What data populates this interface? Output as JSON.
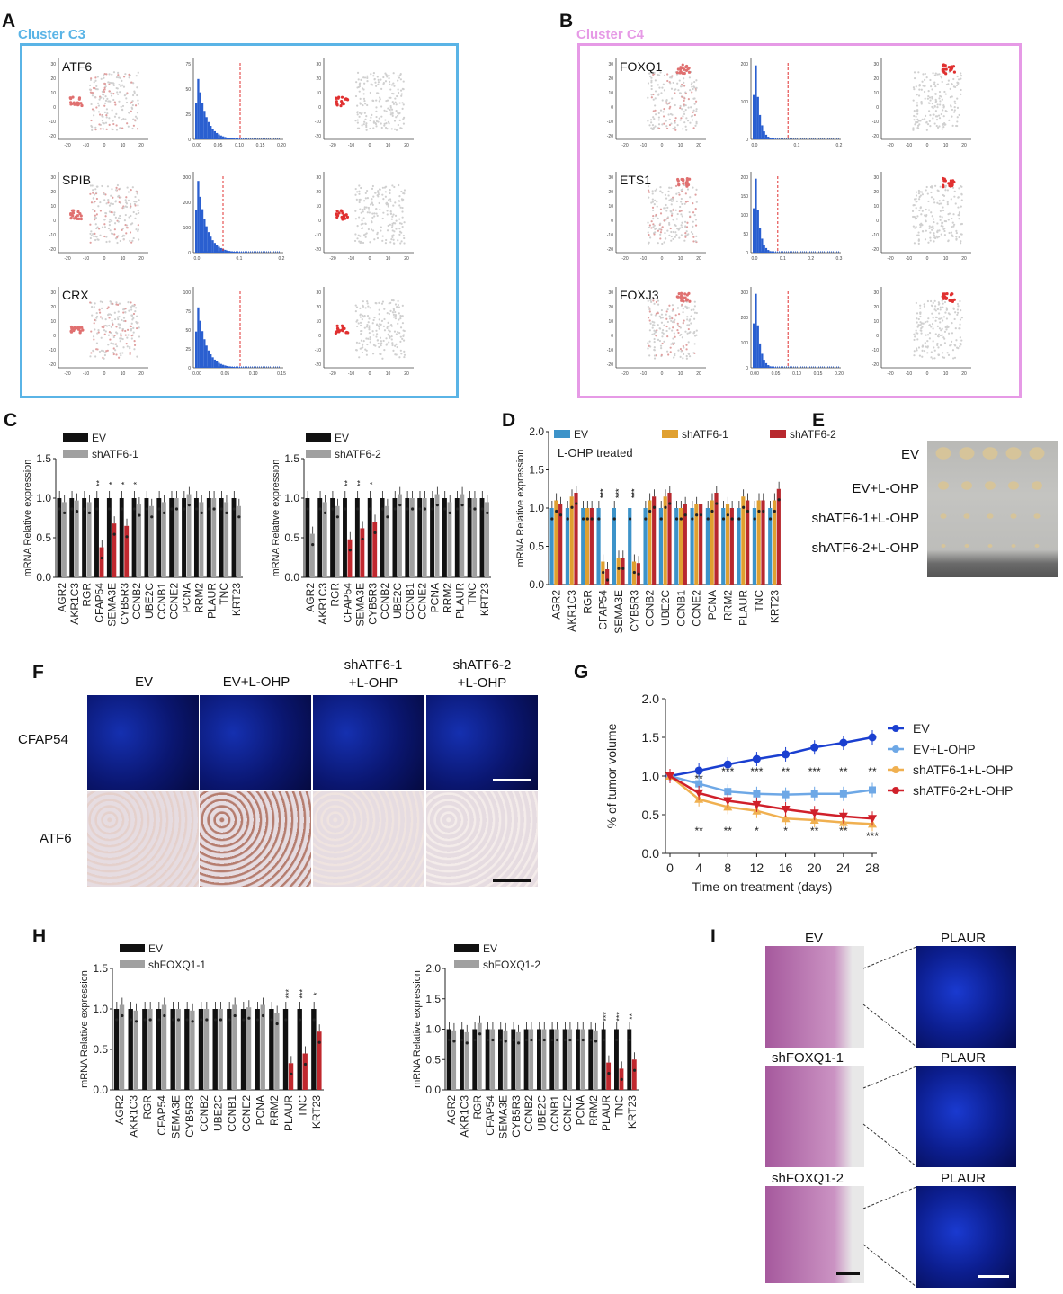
{
  "panels": {
    "A": {
      "letter": "A",
      "title": "Cluster C3",
      "color": "#5ab4e6",
      "genes": [
        "ATF6",
        "SPIB",
        "CRX"
      ],
      "hist_xticks": [
        [
          "0.00",
          "0.05",
          "0.10",
          "0.15",
          "0.20"
        ],
        [
          "0.0",
          "0.1",
          "0.2"
        ],
        [
          "0.00",
          "0.05",
          "0.10",
          "0.15"
        ]
      ],
      "hist_yticks": [
        [
          "75",
          "50",
          "25",
          "0"
        ],
        [
          "300",
          "200",
          "100",
          "0"
        ],
        [
          "100",
          "75",
          "50",
          "25",
          "0"
        ]
      ]
    },
    "B": {
      "letter": "B",
      "title": "Cluster C4",
      "color": "#e69ae6",
      "genes": [
        "FOXQ1",
        "ETS1",
        "FOXJ3"
      ],
      "hist_xticks": [
        [
          "0.0",
          "0.1",
          "0.2"
        ],
        [
          "0.0",
          "0.1",
          "0.2",
          "0.3"
        ],
        [
          "0.00",
          "0.05",
          "0.10",
          "0.15",
          "0.20"
        ]
      ],
      "hist_yticks": [
        [
          "200",
          "100",
          "0"
        ],
        [
          "200",
          "150",
          "100",
          "50",
          "0"
        ],
        [
          "300",
          "200",
          "100",
          "0"
        ]
      ]
    },
    "tsne": {
      "xticks": [
        "-20",
        "-10",
        "0",
        "10",
        "20"
      ],
      "yticks": [
        "30",
        "20",
        "10",
        "0",
        "-10",
        "-20"
      ]
    },
    "C": {
      "letter": "C",
      "ylabel": "mRNA Relative expression",
      "yticks": [
        "0.0",
        "0.5",
        "1.0",
        "1.5"
      ],
      "legend": [
        {
          "label": "EV",
          "color": "#111111"
        },
        {
          "label": "shATF6-1",
          "color": "#a0a0a0"
        }
      ],
      "legend2": [
        {
          "label": "EV",
          "color": "#111111"
        },
        {
          "label": "shATF6-2",
          "color": "#a0a0a0"
        }
      ],
      "genes": [
        "AGR2",
        "AKR1C3",
        "RGR",
        "CFAP54",
        "SEMA3E",
        "CYB5R3",
        "CCNB2",
        "UBE2C",
        "CCNB1",
        "CCNE2",
        "PCNA",
        "RRM2",
        "PLAUR",
        "TNC",
        "KRT23"
      ],
      "sig1": [
        "**",
        "*",
        "*",
        "*"
      ],
      "sig2": [
        "**",
        "**",
        "*"
      ]
    },
    "D": {
      "letter": "D",
      "ylabel": "mRNA Relative expression",
      "yticks": [
        "0.0",
        "0.5",
        "1.0",
        "1.5",
        "2.0"
      ],
      "subtitle": "L-OHP treated",
      "legend": [
        {
          "label": "EV",
          "color": "#3d93c9"
        },
        {
          "label": "shATF6-1",
          "color": "#e0a030"
        },
        {
          "label": "shATF6-2",
          "color": "#b8282e"
        }
      ],
      "genes": [
        "AGR2",
        "AKR1C3",
        "RGR",
        "CFAP54",
        "SEMA3E",
        "CYB5R3",
        "CCNB2",
        "UBE2C",
        "CCNB1",
        "CCNE2",
        "PCNA",
        "RRM2",
        "PLAUR",
        "TNC",
        "KRT23"
      ],
      "sig": [
        "***",
        "***",
        "***",
        "***",
        "***",
        "***"
      ]
    },
    "E": {
      "letter": "E",
      "rows": [
        "EV",
        "EV+L-OHP",
        "shATF6-1+L-OHP",
        "shATF6-2+L-OHP"
      ]
    },
    "F": {
      "letter": "F",
      "cols": [
        "EV",
        "EV+L-OHP",
        "shATF6-1\n+L-OHP",
        "shATF6-2\n+L-OHP"
      ],
      "col1": "shATF6-1",
      "col1b": "+L-OHP",
      "col2": "shATF6-2",
      "col2b": "+L-OHP",
      "rows": [
        "CFAP54",
        "ATF6"
      ]
    },
    "G": {
      "letter": "G",
      "ylabel": "% of  tumor volume",
      "xlabel": "Time on treatment (days)",
      "xticks": [
        "0",
        "4",
        "8",
        "12",
        "16",
        "20",
        "24",
        "28"
      ],
      "yticks": [
        "0.0",
        "0.5",
        "1.0",
        "1.5",
        "2.0"
      ],
      "legend": [
        {
          "label": "EV",
          "color": "#1a3fd0"
        },
        {
          "label": "EV+L-OHP",
          "color": "#6ea8e6"
        },
        {
          "label": "shATF6-1+L-OHP",
          "color": "#f0b050"
        },
        {
          "label": "shATF6-2+L-OHP",
          "color": "#d0202a"
        }
      ],
      "sig_top": [
        "**",
        "***",
        "***",
        "**",
        "***",
        "**",
        "**"
      ],
      "sig_bot": [
        "**",
        "**",
        "*",
        "*",
        "**",
        "**",
        "***"
      ]
    },
    "H": {
      "letter": "H",
      "ylabel": "mRNA Relative expression",
      "yticks1": [
        "0.0",
        "0.5",
        "1.0",
        "1.5"
      ],
      "yticks2": [
        "0.0",
        "0.5",
        "1.0",
        "1.5",
        "2.0"
      ],
      "legend": [
        {
          "label": "EV",
          "color": "#111111"
        },
        {
          "label": "shFOXQ1-1",
          "color": "#a0a0a0"
        }
      ],
      "legend2": [
        {
          "label": "EV",
          "color": "#111111"
        },
        {
          "label": "shFOXQ1-2",
          "color": "#a0a0a0"
        }
      ],
      "genes": [
        "AGR2",
        "AKR1C3",
        "RGR",
        "CFAP54",
        "SEMA3E",
        "CYB5R3",
        "CCNB2",
        "UBE2C",
        "CCNB1",
        "CCNE2",
        "PCNA",
        "RRM2",
        "PLAUR",
        "TNC",
        "KRT23"
      ],
      "sig1": [
        "***",
        "***",
        "*"
      ],
      "sig2": [
        "***",
        "***",
        "**"
      ]
    },
    "I": {
      "letter": "I",
      "rows": [
        "EV",
        "shFOXQ1-1",
        "shFOXQ1-2"
      ],
      "stain": "PLAUR"
    }
  },
  "chart_data": [
    {
      "type": "bar",
      "panel": "C-left",
      "categories": [
        "AGR2",
        "AKR1C3",
        "RGR",
        "CFAP54",
        "SEMA3E",
        "CYB5R3",
        "CCNB2",
        "UBE2C",
        "CCNB1",
        "CCNE2",
        "PCNA",
        "RRM2",
        "PLAUR",
        "TNC",
        "KRT23"
      ],
      "series": [
        {
          "name": "EV",
          "values": [
            1.0,
            1.0,
            1.0,
            1.0,
            1.0,
            1.0,
            1.0,
            1.0,
            1.0,
            1.0,
            1.0,
            1.0,
            1.0,
            1.0,
            1.0
          ]
        },
        {
          "name": "shATF6-1",
          "values": [
            0.95,
            0.97,
            0.95,
            0.38,
            0.68,
            0.65,
            0.92,
            0.9,
            0.95,
            1.0,
            1.05,
            0.95,
            1.0,
            0.95,
            0.9
          ]
        }
      ],
      "ylim": [
        0,
        1.5
      ],
      "ylabel": "mRNA Relative expression"
    },
    {
      "type": "bar",
      "panel": "C-right",
      "categories": [
        "AGR2",
        "AKR1C3",
        "RGR",
        "CFAP54",
        "SEMA3E",
        "CYB5R3",
        "CCNB2",
        "UBE2C",
        "CCNB1",
        "CCNE2",
        "PCNA",
        "RRM2",
        "PLAUR",
        "TNC",
        "KRT23"
      ],
      "series": [
        {
          "name": "EV",
          "values": [
            1.0,
            1.0,
            1.0,
            1.0,
            1.0,
            1.0,
            1.0,
            1.0,
            1.0,
            1.0,
            1.0,
            1.0,
            1.0,
            1.0,
            1.0
          ]
        },
        {
          "name": "shATF6-2",
          "values": [
            0.55,
            0.95,
            0.9,
            0.48,
            0.62,
            0.7,
            0.9,
            1.05,
            1.0,
            1.0,
            1.05,
            0.95,
            1.05,
            1.0,
            0.95
          ]
        }
      ],
      "ylim": [
        0,
        1.5
      ],
      "ylabel": "mRNA Relative expression"
    },
    {
      "type": "bar",
      "panel": "D",
      "categories": [
        "AGR2",
        "AKR1C3",
        "RGR",
        "CFAP54",
        "SEMA3E",
        "CYB5R3",
        "CCNB2",
        "UBE2C",
        "CCNB1",
        "CCNE2",
        "PCNA",
        "RRM2",
        "PLAUR",
        "TNC",
        "KRT23"
      ],
      "series": [
        {
          "name": "EV",
          "values": [
            1.0,
            1.0,
            1.0,
            1.0,
            1.0,
            1.0,
            1.0,
            1.0,
            1.0,
            1.0,
            1.0,
            1.0,
            1.0,
            1.0,
            1.0
          ]
        },
        {
          "name": "shATF6-1",
          "values": [
            1.1,
            1.15,
            1.0,
            0.3,
            0.35,
            0.3,
            1.1,
            1.15,
            1.0,
            1.05,
            1.1,
            1.05,
            1.15,
            1.1,
            1.1
          ]
        },
        {
          "name": "shATF6-2",
          "values": [
            1.05,
            1.2,
            1.0,
            0.2,
            0.35,
            0.28,
            1.15,
            1.2,
            1.05,
            1.05,
            1.2,
            1.0,
            1.1,
            1.1,
            1.25
          ]
        }
      ],
      "ylim": [
        0,
        2.0
      ],
      "ylabel": "mRNA Relative expression"
    },
    {
      "type": "line",
      "panel": "G",
      "x": [
        0,
        4,
        8,
        12,
        16,
        20,
        24,
        28
      ],
      "series": [
        {
          "name": "EV",
          "values": [
            1.0,
            1.07,
            1.15,
            1.22,
            1.28,
            1.37,
            1.43,
            1.5
          ]
        },
        {
          "name": "EV+L-OHP",
          "values": [
            1.0,
            0.9,
            0.8,
            0.77,
            0.76,
            0.77,
            0.77,
            0.82
          ]
        },
        {
          "name": "shATF6-1+L-OHP",
          "values": [
            1.0,
            0.7,
            0.6,
            0.55,
            0.45,
            0.43,
            0.4,
            0.38
          ]
        },
        {
          "name": "shATF6-2+L-OHP",
          "values": [
            1.0,
            0.78,
            0.68,
            0.63,
            0.57,
            0.52,
            0.48,
            0.45
          ]
        }
      ],
      "ylim": [
        0,
        2.0
      ],
      "xlabel": "Time on treatment (days)",
      "ylabel": "% of  tumor volume"
    },
    {
      "type": "bar",
      "panel": "H-left",
      "categories": [
        "AGR2",
        "AKR1C3",
        "RGR",
        "CFAP54",
        "SEMA3E",
        "CYB5R3",
        "CCNB2",
        "UBE2C",
        "CCNB1",
        "CCNE2",
        "PCNA",
        "RRM2",
        "PLAUR",
        "TNC",
        "KRT23"
      ],
      "series": [
        {
          "name": "EV",
          "values": [
            1.0,
            1.0,
            1.0,
            1.0,
            1.0,
            1.0,
            1.0,
            1.0,
            1.0,
            1.0,
            1.0,
            1.0,
            1.0,
            1.0,
            1.0
          ]
        },
        {
          "name": "shFOXQ1-1",
          "values": [
            1.05,
            0.98,
            1.0,
            1.05,
            1.0,
            0.98,
            1.0,
            1.0,
            1.05,
            1.02,
            1.05,
            0.95,
            0.33,
            0.45,
            0.72
          ]
        }
      ],
      "ylim": [
        0,
        1.5
      ],
      "ylabel": "mRNA Relative expression"
    },
    {
      "type": "bar",
      "panel": "H-right",
      "categories": [
        "AGR2",
        "AKR1C3",
        "RGR",
        "CFAP54",
        "SEMA3E",
        "CYB5R3",
        "CCNB2",
        "UBE2C",
        "CCNB1",
        "CCNE2",
        "PCNA",
        "RRM2",
        "PLAUR",
        "TNC",
        "KRT23"
      ],
      "series": [
        {
          "name": "EV",
          "values": [
            1.0,
            1.0,
            1.0,
            1.0,
            1.0,
            1.0,
            1.0,
            1.0,
            1.0,
            1.0,
            1.0,
            1.0,
            1.0,
            1.0,
            1.0
          ]
        },
        {
          "name": "shFOXQ1-2",
          "values": [
            0.98,
            0.95,
            1.1,
            1.0,
            0.98,
            0.95,
            1.0,
            1.0,
            1.0,
            1.0,
            1.0,
            0.98,
            0.45,
            0.35,
            0.5
          ]
        }
      ],
      "ylim": [
        0,
        2.0
      ],
      "ylabel": "mRNA Relative expression"
    }
  ]
}
